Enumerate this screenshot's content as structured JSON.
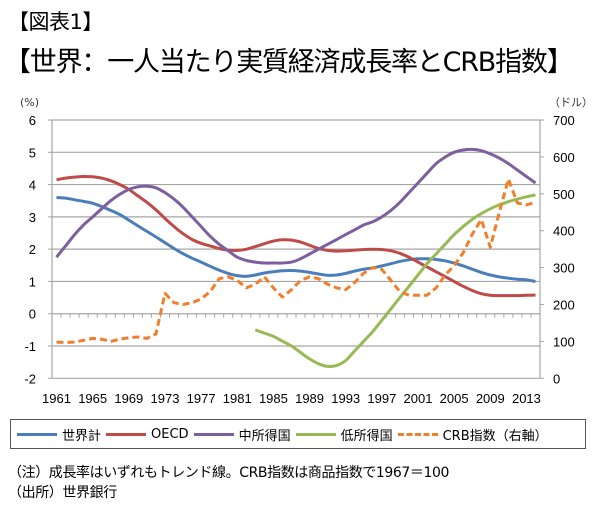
{
  "figure_label": "【図表1】",
  "title": "【世界：一人当たり実質経済成長率とCRB指数】",
  "notes": [
    "（注）成長率はいずれもトレンド線。CRB指数は商品指数で1967＝100",
    "（出所）世界銀行"
  ],
  "chart_data": {
    "type": "line",
    "title": "【世界：一人当たり実質経済成長率とCRB指数】",
    "xlabel": "",
    "ylabel": "(%)",
    "y2label": "（ドル）",
    "ylim": [
      -2,
      6
    ],
    "y2lim": [
      0,
      700
    ],
    "yticks": [
      6,
      5,
      4,
      3,
      2,
      1,
      0,
      -1,
      -2
    ],
    "y2ticks": [
      700,
      600,
      500,
      400,
      300,
      200,
      100,
      0
    ],
    "xticks": [
      "1961",
      "1965",
      "1969",
      "1973",
      "1977",
      "1981",
      "1985",
      "1989",
      "1993",
      "1997",
      "2001",
      "2005",
      "2009",
      "2013"
    ],
    "grid": true,
    "legend_position": "bottom",
    "x": [
      1961,
      1962,
      1963,
      1964,
      1965,
      1966,
      1967,
      1968,
      1969,
      1970,
      1971,
      1972,
      1973,
      1974,
      1975,
      1976,
      1977,
      1978,
      1979,
      1980,
      1981,
      1982,
      1983,
      1984,
      1985,
      1986,
      1987,
      1988,
      1989,
      1990,
      1991,
      1992,
      1993,
      1994,
      1995,
      1996,
      1997,
      1998,
      1999,
      2000,
      2001,
      2002,
      2003,
      2004,
      2005,
      2006,
      2007,
      2008,
      2009,
      2010,
      2011,
      2012,
      2013,
      2014
    ],
    "series": [
      {
        "name": "世界計",
        "axis": "left",
        "color": "#4a7ebb",
        "style": "solid",
        "values": [
          3.6,
          3.58,
          3.53,
          3.48,
          3.42,
          3.32,
          3.2,
          3.07,
          2.9,
          2.72,
          2.55,
          2.38,
          2.2,
          2.02,
          1.86,
          1.72,
          1.6,
          1.47,
          1.35,
          1.25,
          1.18,
          1.16,
          1.2,
          1.26,
          1.3,
          1.33,
          1.34,
          1.32,
          1.28,
          1.23,
          1.19,
          1.2,
          1.25,
          1.32,
          1.38,
          1.42,
          1.48,
          1.55,
          1.62,
          1.67,
          1.7,
          1.7,
          1.68,
          1.64,
          1.57,
          1.48,
          1.38,
          1.28,
          1.2,
          1.14,
          1.1,
          1.07,
          1.05,
          1.0
        ]
      },
      {
        "name": "OECD",
        "axis": "left",
        "color": "#be4b48",
        "style": "solid",
        "values": [
          4.15,
          4.2,
          4.23,
          4.25,
          4.24,
          4.2,
          4.12,
          4.0,
          3.85,
          3.65,
          3.45,
          3.22,
          2.95,
          2.7,
          2.48,
          2.3,
          2.18,
          2.1,
          2.02,
          1.97,
          1.96,
          2.0,
          2.08,
          2.17,
          2.25,
          2.29,
          2.28,
          2.22,
          2.12,
          2.02,
          1.96,
          1.94,
          1.95,
          1.97,
          1.99,
          2.0,
          1.99,
          1.95,
          1.87,
          1.75,
          1.6,
          1.45,
          1.3,
          1.15,
          1.0,
          0.85,
          0.72,
          0.62,
          0.57,
          0.56,
          0.56,
          0.56,
          0.57,
          0.58
        ]
      },
      {
        "name": "中所得国",
        "axis": "left",
        "color": "#7d5fa0",
        "style": "solid",
        "values": [
          1.75,
          2.1,
          2.45,
          2.75,
          3.0,
          3.25,
          3.5,
          3.7,
          3.85,
          3.93,
          3.95,
          3.9,
          3.75,
          3.55,
          3.3,
          3.0,
          2.7,
          2.4,
          2.15,
          1.95,
          1.75,
          1.65,
          1.6,
          1.57,
          1.57,
          1.57,
          1.6,
          1.7,
          1.85,
          2.0,
          2.15,
          2.3,
          2.45,
          2.6,
          2.75,
          2.85,
          3.0,
          3.2,
          3.45,
          3.75,
          4.05,
          4.35,
          4.65,
          4.85,
          5.0,
          5.07,
          5.09,
          5.05,
          4.95,
          4.82,
          4.65,
          4.45,
          4.25,
          4.05
        ]
      },
      {
        "name": "低所得国",
        "axis": "left",
        "color": "#98b954",
        "style": "solid",
        "values": [
          null,
          null,
          null,
          null,
          null,
          null,
          null,
          null,
          null,
          null,
          null,
          null,
          null,
          null,
          null,
          null,
          null,
          null,
          null,
          null,
          null,
          null,
          -0.5,
          -0.6,
          -0.7,
          -0.85,
          -1.0,
          -1.2,
          -1.4,
          -1.55,
          -1.63,
          -1.6,
          -1.45,
          -1.15,
          -0.85,
          -0.55,
          -0.2,
          0.15,
          0.5,
          0.85,
          1.2,
          1.55,
          1.85,
          2.15,
          2.45,
          2.7,
          2.92,
          3.1,
          3.25,
          3.37,
          3.47,
          3.55,
          3.62,
          3.68
        ]
      },
      {
        "name": "CRB指数（右軸）",
        "axis": "right",
        "color": "#f07f2c",
        "style": "dashed",
        "values": [
          98,
          97,
          98,
          103,
          108,
          106,
          100,
          106,
          110,
          112,
          108,
          120,
          230,
          205,
          200,
          205,
          215,
          235,
          270,
          275,
          265,
          245,
          255,
          275,
          245,
          220,
          240,
          265,
          275,
          270,
          255,
          245,
          240,
          260,
          285,
          300,
          295,
          265,
          235,
          225,
          225,
          225,
          245,
          280,
          305,
          340,
          390,
          430,
          355,
          450,
          540,
          475,
          470,
          477
        ]
      }
    ]
  }
}
